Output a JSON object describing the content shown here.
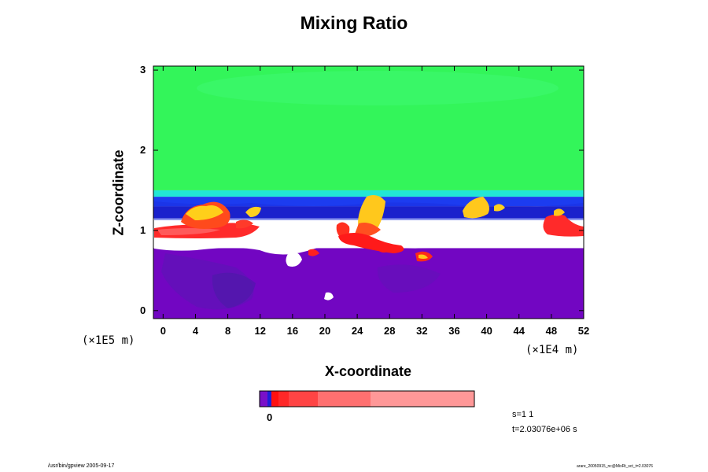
{
  "chart_data": {
    "type": "heatmap",
    "title": "Mixing Ratio",
    "xlabel": "X-coordinate",
    "ylabel": "Z-coordinate",
    "x_ticks": [
      "0",
      "4",
      "8",
      "12",
      "16",
      "20",
      "24",
      "28",
      "32",
      "36",
      "40",
      "44",
      "48",
      "52"
    ],
    "y_ticks": [
      "0",
      "1",
      "2",
      "3"
    ],
    "x_scale_label": "(×1E4 m)",
    "y_scale_label": "(×1E5 m)",
    "xlim": [
      -1.2,
      52
    ],
    "ylim": [
      -0.1,
      3.05
    ],
    "bands": [
      {
        "name": "upper layer",
        "z_from": 1.5,
        "z_to": 3.05,
        "color": "#33f55a"
      },
      {
        "name": "transition cyan",
        "z_from": 1.42,
        "z_to": 1.5,
        "color": "#22e6d5"
      },
      {
        "name": "transition blue",
        "z_from": 1.3,
        "z_to": 1.42,
        "color": "#1c3cf0"
      },
      {
        "name": "dark blue layer",
        "z_from": 1.15,
        "z_to": 1.3,
        "color": "#1a14b8"
      },
      {
        "name": "low-level layer",
        "z_from": -0.1,
        "z_to": 0.78,
        "color": "#7206c2"
      }
    ],
    "colorbar": {
      "min_label": "0",
      "colors": [
        "#7a10c8",
        "#1e1ed8",
        "#ff1010",
        "#ff2828",
        "#ff4444",
        "#ff7070",
        "#ff9898"
      ]
    },
    "annotations": {
      "step": "s=1 1",
      "time": "t=2.03076e+06 s",
      "footer_left": "/usr/bin/gpview 2005-09-17",
      "footer_right": "arare_20050915_nc@MixRt_sct_t=2.03076"
    }
  }
}
